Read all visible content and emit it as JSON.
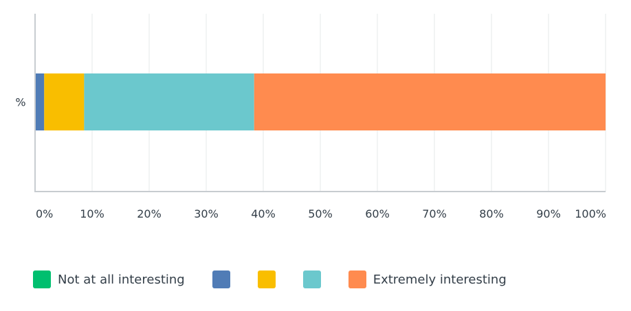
{
  "chart_data": {
    "type": "bar",
    "orientation": "horizontal",
    "stacked": true,
    "categories": [
      "%"
    ],
    "xlim": [
      0,
      100
    ],
    "x_ticks": [
      "0%",
      "10%",
      "20%",
      "30%",
      "40%",
      "50%",
      "60%",
      "70%",
      "80%",
      "90%",
      "100%"
    ],
    "grid": true,
    "legend_position": "bottom",
    "series": [
      {
        "name": "Not at all interesting",
        "values": [
          0
        ],
        "color": "#00bf6f"
      },
      {
        "name": "",
        "values": [
          1.6
        ],
        "color": "#507cb6"
      },
      {
        "name": "",
        "values": [
          7.0
        ],
        "color": "#f9be00"
      },
      {
        "name": "",
        "values": [
          29.8
        ],
        "color": "#6bc8cd"
      },
      {
        "name": "Extremely interesting",
        "values": [
          61.6
        ],
        "color": "#ff8b4f"
      }
    ]
  }
}
